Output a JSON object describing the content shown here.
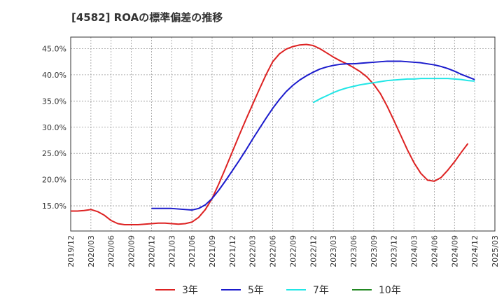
{
  "chart_data": {
    "type": "line",
    "title": "[4582]  ROAの標準偏差の推移",
    "xlabel": "",
    "ylabel": "",
    "ylim": [
      10.2,
      47.2
    ],
    "x_tick_labels": [
      "2019/12",
      "2020/03",
      "2020/06",
      "2020/09",
      "2020/12",
      "2021/03",
      "2021/06",
      "2021/09",
      "2021/12",
      "2022/03",
      "2022/06",
      "2022/09",
      "2022/12",
      "2023/03",
      "2023/06",
      "2023/09",
      "2023/12",
      "2024/03",
      "2024/06",
      "2024/09",
      "2024/12",
      "2025/03"
    ],
    "y_ticks": [
      15,
      20,
      25,
      30,
      35,
      40,
      45
    ],
    "y_tick_labels": [
      "15.0%",
      "20.0%",
      "25.0%",
      "30.0%",
      "35.0%",
      "40.0%",
      "45.0%"
    ],
    "grid": true,
    "legend_position": "bottom",
    "series": [
      {
        "name": "3年",
        "color": "#dd2222",
        "x": [
          "2019/12",
          "2020/01",
          "2020/02",
          "2020/03",
          "2020/04",
          "2020/05",
          "2020/06",
          "2020/07",
          "2020/08",
          "2020/09",
          "2020/10",
          "2020/11",
          "2020/12",
          "2021/01",
          "2021/02",
          "2021/03",
          "2021/04",
          "2021/05",
          "2021/06",
          "2021/07",
          "2021/08",
          "2021/09",
          "2021/10",
          "2021/11",
          "2021/12",
          "2022/01",
          "2022/02",
          "2022/03",
          "2022/04",
          "2022/05",
          "2022/06",
          "2022/07",
          "2022/08",
          "2022/09",
          "2022/10",
          "2022/11",
          "2022/12",
          "2023/01",
          "2023/02",
          "2023/03",
          "2023/04",
          "2023/05",
          "2023/06",
          "2023/07",
          "2023/08",
          "2023/09",
          "2023/10",
          "2023/11",
          "2023/12",
          "2024/01",
          "2024/02",
          "2024/03",
          "2024/04",
          "2024/05",
          "2024/06",
          "2024/07",
          "2024/08",
          "2024/09",
          "2024/10",
          "2024/11",
          "2024/12"
        ],
        "values": [
          14.0,
          14.0,
          14.1,
          14.3,
          13.9,
          13.2,
          12.2,
          11.6,
          11.4,
          11.4,
          11.4,
          11.5,
          11.6,
          11.7,
          11.7,
          11.6,
          11.5,
          11.6,
          11.9,
          12.8,
          14.3,
          16.4,
          19.2,
          22.2,
          25.3,
          28.4,
          31.4,
          34.3,
          37.2,
          40.0,
          42.5,
          44.0,
          44.9,
          45.4,
          45.7,
          45.8,
          45.6,
          45.0,
          44.2,
          43.4,
          42.7,
          42.1,
          41.4,
          40.6,
          39.6,
          38.2,
          36.4,
          34.0,
          31.3,
          28.5,
          25.7,
          23.2,
          21.2,
          19.9,
          19.7,
          20.4,
          21.8,
          23.4,
          25.2,
          26.9,
          null
        ]
      },
      {
        "name": "5年",
        "color": "#1a1acc",
        "x": [
          "2020/12",
          "2021/01",
          "2021/02",
          "2021/03",
          "2021/04",
          "2021/05",
          "2021/06",
          "2021/07",
          "2021/08",
          "2021/09",
          "2021/10",
          "2021/11",
          "2021/12",
          "2022/01",
          "2022/02",
          "2022/03",
          "2022/04",
          "2022/05",
          "2022/06",
          "2022/07",
          "2022/08",
          "2022/09",
          "2022/10",
          "2022/11",
          "2022/12",
          "2023/01",
          "2023/02",
          "2023/03",
          "2023/04",
          "2023/05",
          "2023/06",
          "2023/07",
          "2023/08",
          "2023/09",
          "2023/10",
          "2023/11",
          "2023/12",
          "2024/01",
          "2024/02",
          "2024/03",
          "2024/04",
          "2024/05",
          "2024/06",
          "2024/07",
          "2024/08",
          "2024/09",
          "2024/10",
          "2024/11",
          "2024/12"
        ],
        "values": [
          14.5,
          14.5,
          14.5,
          14.5,
          14.4,
          14.3,
          14.2,
          14.5,
          15.2,
          16.4,
          18.0,
          19.8,
          21.7,
          23.6,
          25.6,
          27.7,
          29.7,
          31.7,
          33.6,
          35.3,
          36.8,
          38.0,
          39.0,
          39.8,
          40.5,
          41.1,
          41.5,
          41.8,
          42.0,
          42.1,
          42.1,
          42.2,
          42.3,
          42.4,
          42.5,
          42.6,
          42.6,
          42.6,
          42.5,
          42.4,
          42.3,
          42.1,
          41.9,
          41.6,
          41.2,
          40.7,
          40.1,
          39.6,
          39.1
        ]
      },
      {
        "name": "7年",
        "color": "#22e6e6",
        "x": [
          "2022/12",
          "2023/01",
          "2023/02",
          "2023/03",
          "2023/04",
          "2023/05",
          "2023/06",
          "2023/07",
          "2023/08",
          "2023/09",
          "2023/10",
          "2023/11",
          "2023/12",
          "2024/01",
          "2024/02",
          "2024/03",
          "2024/04",
          "2024/05",
          "2024/06",
          "2024/07",
          "2024/08",
          "2024/09",
          "2024/10",
          "2024/11",
          "2024/12"
        ],
        "values": [
          34.7,
          35.4,
          36.0,
          36.6,
          37.1,
          37.5,
          37.8,
          38.1,
          38.3,
          38.5,
          38.7,
          38.9,
          39.0,
          39.1,
          39.2,
          39.2,
          39.3,
          39.3,
          39.3,
          39.3,
          39.3,
          39.2,
          39.1,
          38.9,
          38.8
        ]
      },
      {
        "name": "10年",
        "color": "#228822",
        "x": [],
        "values": []
      }
    ]
  }
}
